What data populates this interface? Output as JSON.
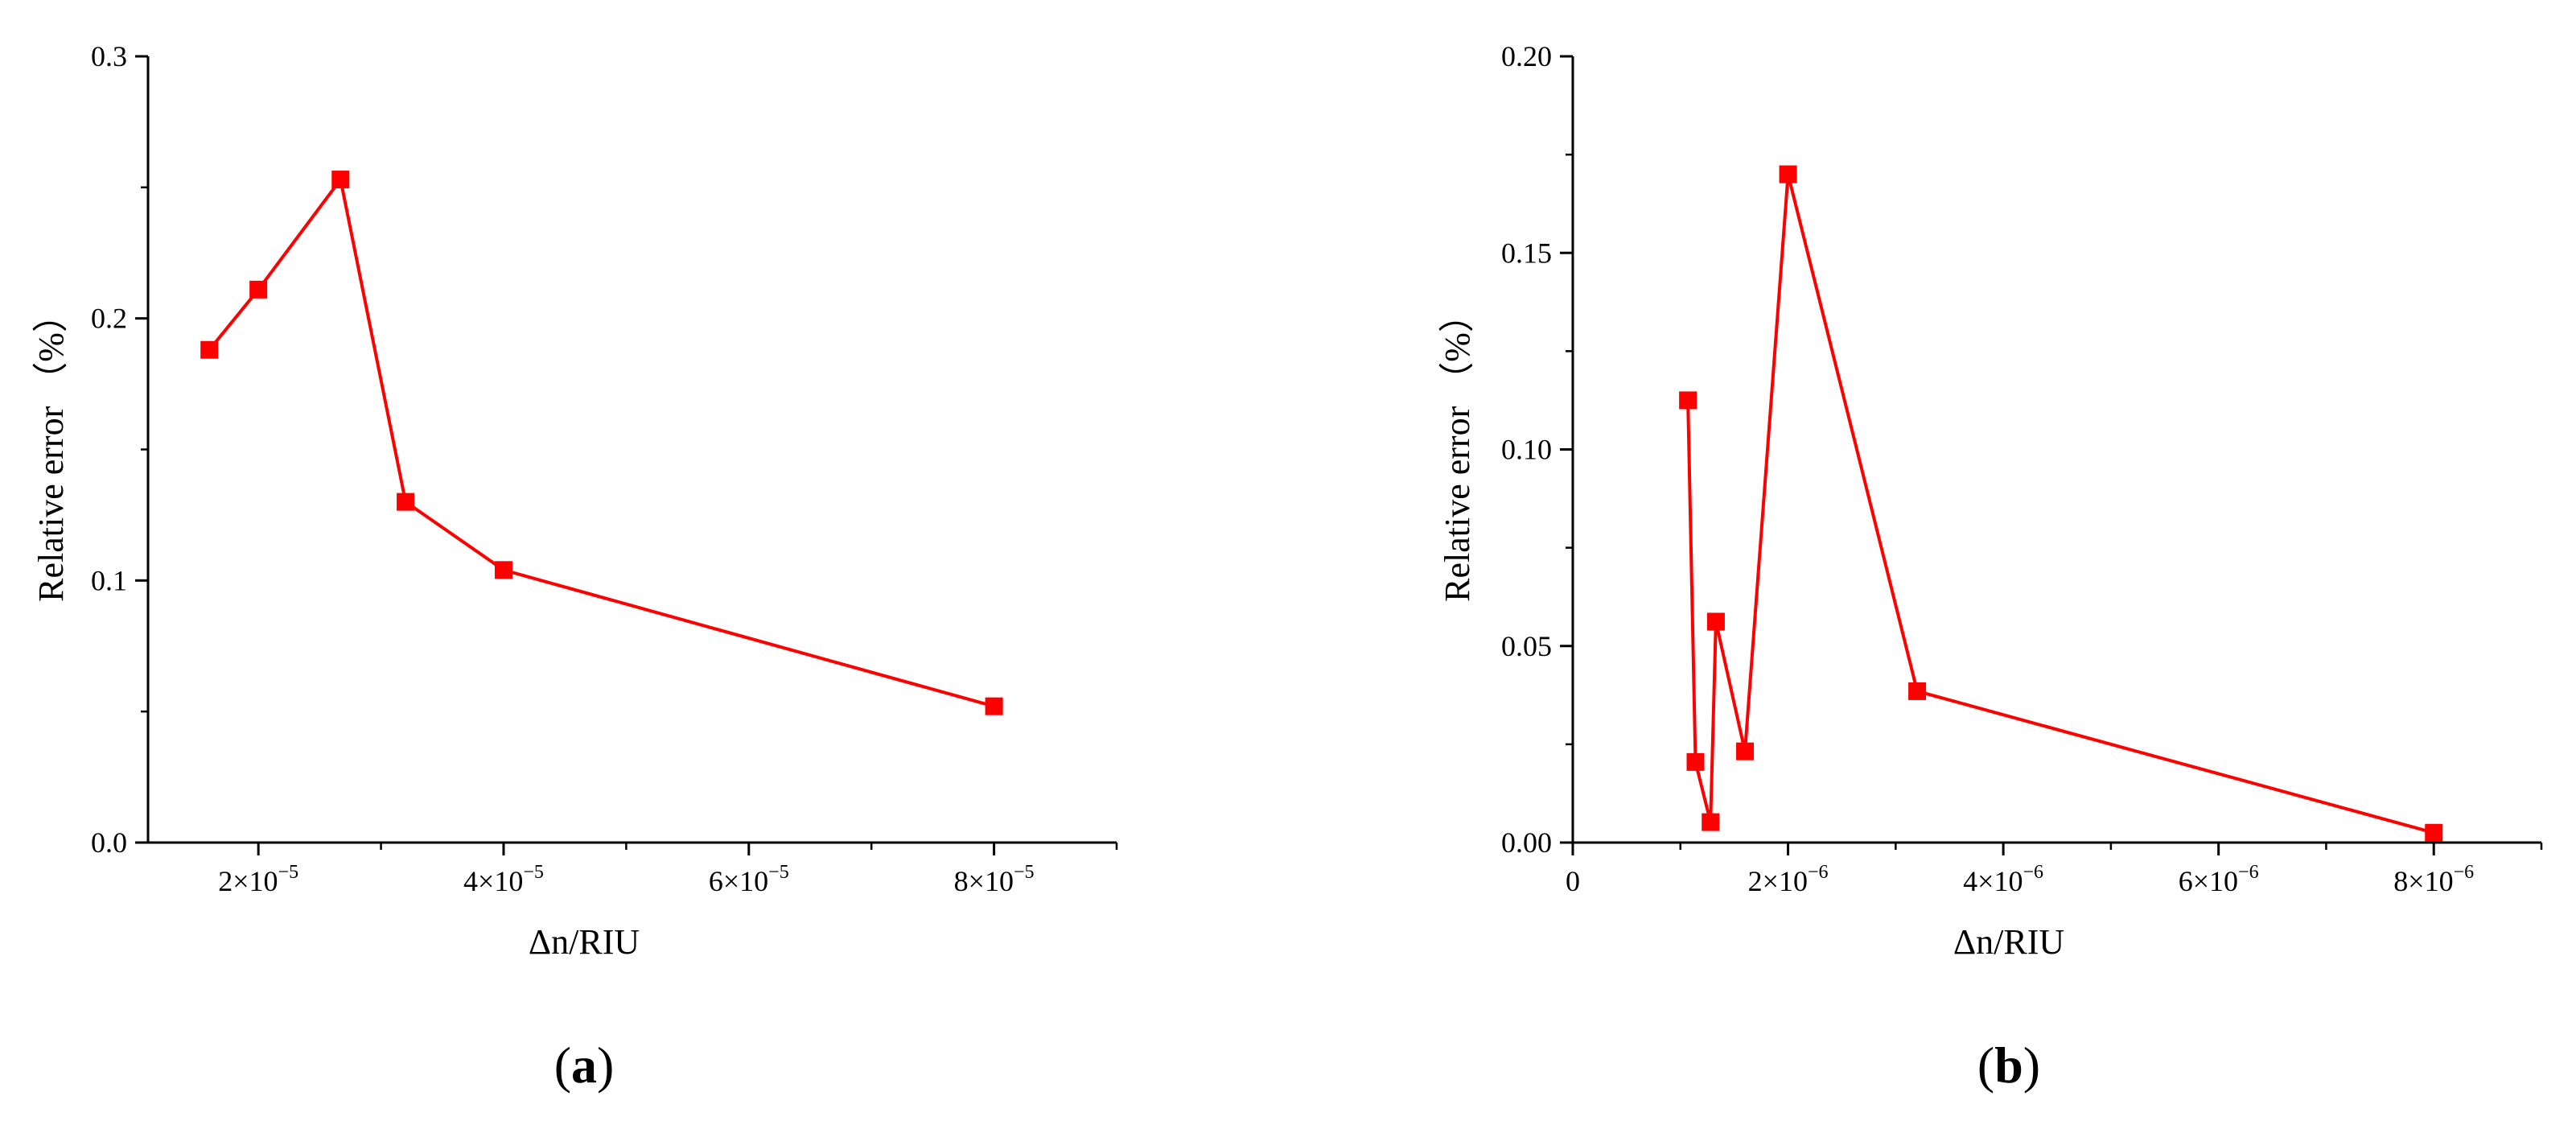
{
  "colors": {
    "series": "#ff0000",
    "axis": "#000000",
    "background": "#ffffff"
  },
  "chart_data": [
    {
      "type": "line",
      "panel_label": "a",
      "xlabel": "Δn/RIU",
      "ylabel": "Relative error （%）",
      "xlim": [
        1.1e-05,
        9e-05
      ],
      "ylim": [
        0,
        0.3
      ],
      "x_scale": "linear",
      "y_scale": "linear",
      "grid": false,
      "marker": "square",
      "x_ticks": [
        {
          "value": 2e-05,
          "mantissa": "2",
          "base": "10",
          "exp": "−5"
        },
        {
          "value": 4e-05,
          "mantissa": "4",
          "base": "10",
          "exp": "−5"
        },
        {
          "value": 6e-05,
          "mantissa": "6",
          "base": "10",
          "exp": "−5"
        },
        {
          "value": 8e-05,
          "mantissa": "8",
          "base": "10",
          "exp": "−5"
        }
      ],
      "y_ticks": [
        {
          "value": 0.0,
          "label": "0.0"
        },
        {
          "value": 0.1,
          "label": "0.1"
        },
        {
          "value": 0.2,
          "label": "0.2"
        },
        {
          "value": 0.3,
          "label": "0.3"
        }
      ],
      "series": [
        {
          "x": [
            1.6e-05,
            2e-05,
            2.67e-05,
            3.2e-05,
            4e-05,
            8e-05
          ],
          "y": [
            0.188,
            0.211,
            0.253,
            0.13,
            0.104,
            0.052
          ]
        }
      ]
    },
    {
      "type": "line",
      "panel_label": "b",
      "xlabel": "Δn/RIU",
      "ylabel": "Relative error （%）",
      "xlim": [
        0,
        9e-06
      ],
      "ylim": [
        0,
        0.2
      ],
      "x_scale": "linear",
      "y_scale": "linear",
      "grid": false,
      "marker": "square",
      "x_ticks": [
        {
          "value": 0,
          "mantissa": "0",
          "base": "",
          "exp": ""
        },
        {
          "value": 2e-06,
          "mantissa": "2",
          "base": "10",
          "exp": "−6"
        },
        {
          "value": 4e-06,
          "mantissa": "4",
          "base": "10",
          "exp": "−6"
        },
        {
          "value": 6e-06,
          "mantissa": "6",
          "base": "10",
          "exp": "−6"
        },
        {
          "value": 8e-06,
          "mantissa": "8",
          "base": "10",
          "exp": "−6"
        }
      ],
      "y_ticks": [
        {
          "value": 0.0,
          "label": "0.00"
        },
        {
          "value": 0.05,
          "label": "0.05"
        },
        {
          "value": 0.1,
          "label": "0.10"
        },
        {
          "value": 0.15,
          "label": "0.15"
        },
        {
          "value": 0.2,
          "label": "0.20"
        }
      ],
      "series": [
        {
          "x": [
            1.07e-06,
            1.14e-06,
            1.28e-06,
            1.33e-06,
            1.6e-06,
            2e-06,
            3.2e-06,
            8e-06
          ],
          "y": [
            0.1125,
            0.0205,
            0.0052,
            0.0562,
            0.0232,
            0.17,
            0.0385,
            0.0025
          ]
        }
      ]
    }
  ]
}
